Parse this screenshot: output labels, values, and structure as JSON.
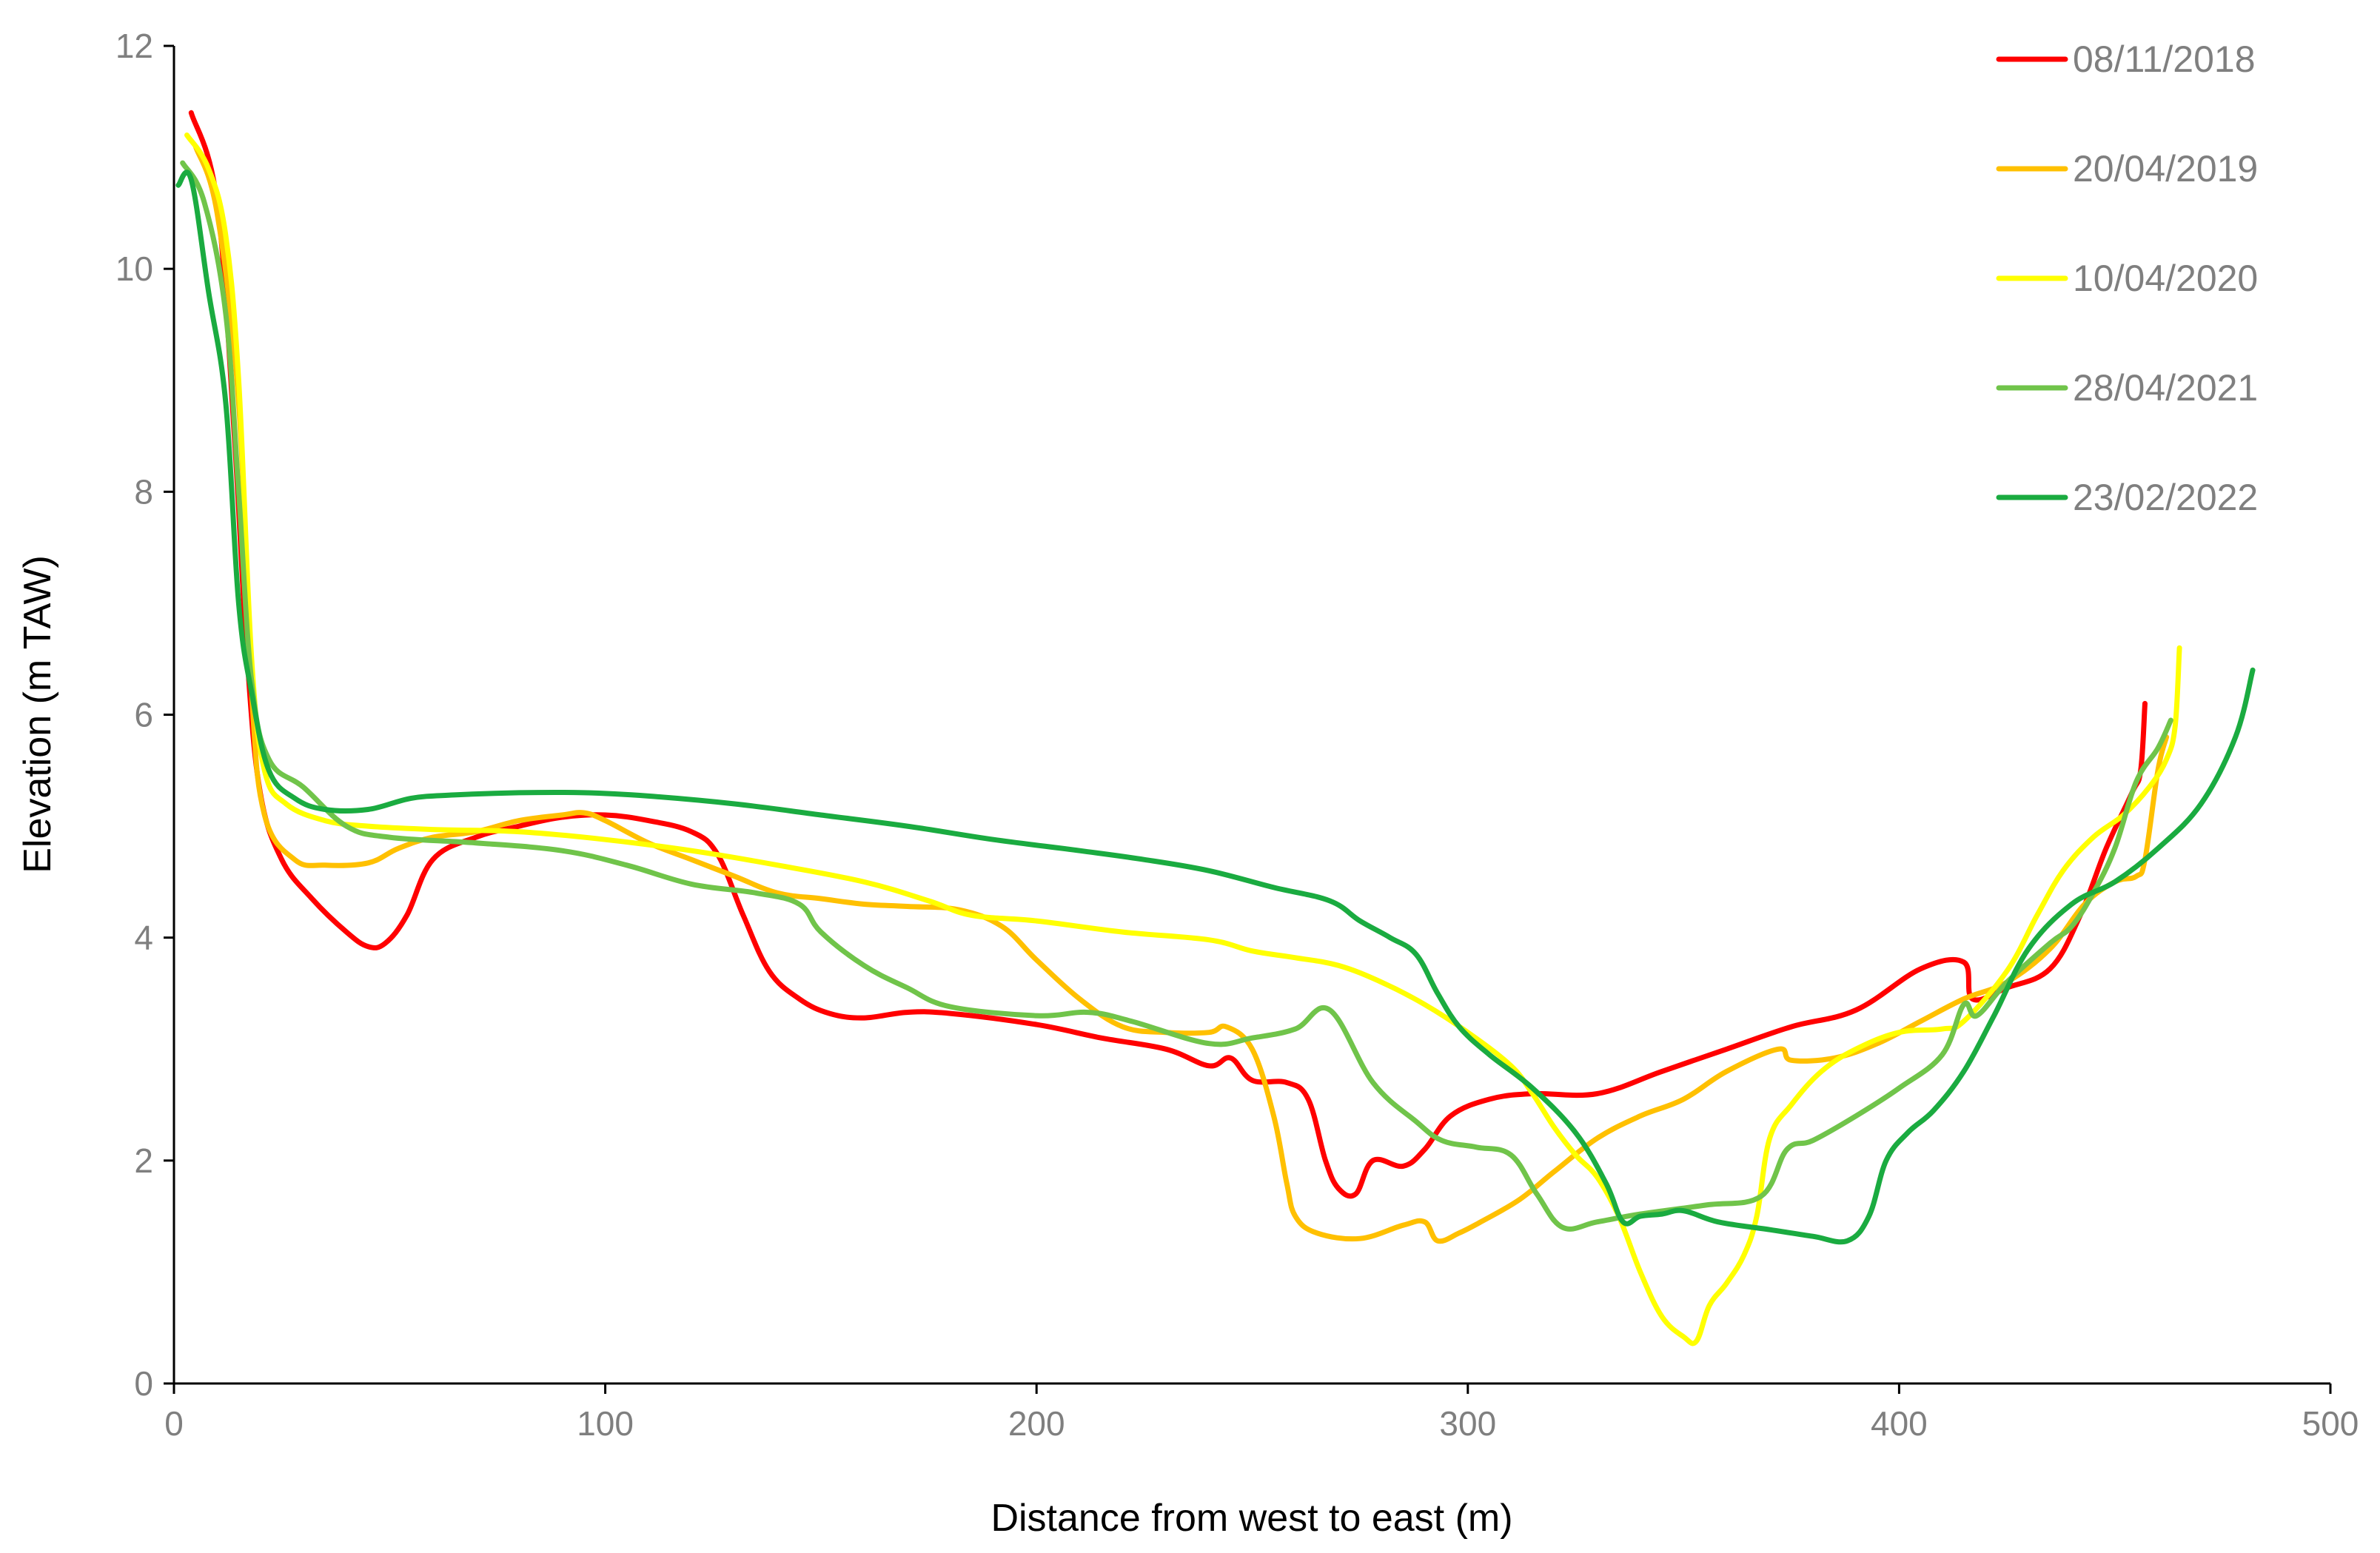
{
  "chart_data": {
    "type": "line",
    "title": "",
    "xlabel": "Distance from west to east (m)",
    "ylabel": "Elevation (m TAW)",
    "xlim": [
      0,
      500
    ],
    "ylim": [
      0,
      12
    ],
    "x_ticks": [
      0,
      100,
      200,
      300,
      400,
      500
    ],
    "y_ticks": [
      0,
      2,
      4,
      6,
      8,
      10,
      12
    ],
    "grid": false,
    "legend_position": "top-right",
    "series": [
      {
        "name": "08/11/2018",
        "color": "#ff0000",
        "points": [
          [
            4,
            11.4
          ],
          [
            10,
            10.6
          ],
          [
            14,
            8.5
          ],
          [
            17,
            6.5
          ],
          [
            20,
            5.3
          ],
          [
            25,
            4.7
          ],
          [
            32,
            4.35
          ],
          [
            40,
            4.05
          ],
          [
            45,
            3.92
          ],
          [
            49,
            3.95
          ],
          [
            54,
            4.2
          ],
          [
            60,
            4.7
          ],
          [
            70,
            4.9
          ],
          [
            80,
            5.0
          ],
          [
            90,
            5.08
          ],
          [
            100,
            5.1
          ],
          [
            110,
            5.05
          ],
          [
            120,
            4.95
          ],
          [
            126,
            4.75
          ],
          [
            132,
            4.2
          ],
          [
            138,
            3.7
          ],
          [
            145,
            3.45
          ],
          [
            152,
            3.32
          ],
          [
            160,
            3.28
          ],
          [
            170,
            3.33
          ],
          [
            180,
            3.32
          ],
          [
            200,
            3.22
          ],
          [
            215,
            3.1
          ],
          [
            230,
            3.0
          ],
          [
            240,
            2.85
          ],
          [
            245,
            2.92
          ],
          [
            250,
            2.72
          ],
          [
            258,
            2.7
          ],
          [
            263,
            2.55
          ],
          [
            267,
            2.0
          ],
          [
            270,
            1.75
          ],
          [
            274,
            1.7
          ],
          [
            278,
            2.0
          ],
          [
            285,
            1.95
          ],
          [
            290,
            2.1
          ],
          [
            296,
            2.4
          ],
          [
            305,
            2.55
          ],
          [
            315,
            2.6
          ],
          [
            330,
            2.6
          ],
          [
            345,
            2.8
          ],
          [
            360,
            3.0
          ],
          [
            375,
            3.2
          ],
          [
            390,
            3.35
          ],
          [
            405,
            3.72
          ],
          [
            415,
            3.78
          ],
          [
            417,
            3.45
          ],
          [
            425,
            3.55
          ],
          [
            435,
            3.72
          ],
          [
            442,
            4.2
          ],
          [
            448,
            4.8
          ],
          [
            454,
            5.3
          ],
          [
            456,
            5.5
          ],
          [
            457,
            6.1
          ]
        ]
      },
      {
        "name": "20/04/2019",
        "color": "#ffc000",
        "points": [
          [
            5,
            11.1
          ],
          [
            10,
            10.5
          ],
          [
            15,
            8.8
          ],
          [
            18,
            6.2
          ],
          [
            21,
            5.1
          ],
          [
            28,
            4.7
          ],
          [
            35,
            4.65
          ],
          [
            45,
            4.67
          ],
          [
            52,
            4.8
          ],
          [
            60,
            4.9
          ],
          [
            70,
            4.95
          ],
          [
            80,
            5.05
          ],
          [
            90,
            5.1
          ],
          [
            95,
            5.12
          ],
          [
            100,
            5.05
          ],
          [
            110,
            4.85
          ],
          [
            120,
            4.7
          ],
          [
            130,
            4.55
          ],
          [
            140,
            4.4
          ],
          [
            150,
            4.35
          ],
          [
            160,
            4.3
          ],
          [
            170,
            4.28
          ],
          [
            182,
            4.25
          ],
          [
            192,
            4.1
          ],
          [
            200,
            3.8
          ],
          [
            210,
            3.45
          ],
          [
            220,
            3.2
          ],
          [
            230,
            3.15
          ],
          [
            240,
            3.15
          ],
          [
            244,
            3.2
          ],
          [
            250,
            3.0
          ],
          [
            255,
            2.4
          ],
          [
            258,
            1.8
          ],
          [
            260,
            1.5
          ],
          [
            265,
            1.35
          ],
          [
            275,
            1.3
          ],
          [
            285,
            1.42
          ],
          [
            290,
            1.45
          ],
          [
            293,
            1.28
          ],
          [
            298,
            1.35
          ],
          [
            303,
            1.45
          ],
          [
            312,
            1.65
          ],
          [
            320,
            1.9
          ],
          [
            330,
            2.2
          ],
          [
            340,
            2.4
          ],
          [
            350,
            2.55
          ],
          [
            360,
            2.8
          ],
          [
            372,
            3.0
          ],
          [
            375,
            2.9
          ],
          [
            385,
            2.92
          ],
          [
            395,
            3.05
          ],
          [
            405,
            3.25
          ],
          [
            415,
            3.45
          ],
          [
            425,
            3.6
          ],
          [
            435,
            3.9
          ],
          [
            443,
            4.3
          ],
          [
            450,
            4.5
          ],
          [
            455,
            4.55
          ],
          [
            457,
            4.7
          ],
          [
            460,
            5.5
          ],
          [
            462,
            5.8
          ]
        ]
      },
      {
        "name": "10/04/2020",
        "color": "#ffff00",
        "points": [
          [
            3,
            11.2
          ],
          [
            8,
            10.9
          ],
          [
            12,
            10.3
          ],
          [
            15,
            9.0
          ],
          [
            18,
            6.5
          ],
          [
            21,
            5.5
          ],
          [
            26,
            5.2
          ],
          [
            35,
            5.05
          ],
          [
            45,
            5.0
          ],
          [
            60,
            4.97
          ],
          [
            80,
            4.95
          ],
          [
            100,
            4.88
          ],
          [
            120,
            4.78
          ],
          [
            140,
            4.65
          ],
          [
            160,
            4.5
          ],
          [
            175,
            4.33
          ],
          [
            185,
            4.2
          ],
          [
            200,
            4.15
          ],
          [
            220,
            4.05
          ],
          [
            240,
            3.98
          ],
          [
            250,
            3.88
          ],
          [
            260,
            3.82
          ],
          [
            270,
            3.75
          ],
          [
            280,
            3.6
          ],
          [
            290,
            3.4
          ],
          [
            300,
            3.15
          ],
          [
            310,
            2.85
          ],
          [
            315,
            2.6
          ],
          [
            320,
            2.3
          ],
          [
            325,
            2.05
          ],
          [
            330,
            1.85
          ],
          [
            335,
            1.5
          ],
          [
            340,
            1.0
          ],
          [
            345,
            0.6
          ],
          [
            350,
            0.42
          ],
          [
            353,
            0.38
          ],
          [
            356,
            0.7
          ],
          [
            360,
            0.9
          ],
          [
            364,
            1.15
          ],
          [
            367,
            1.5
          ],
          [
            370,
            2.2
          ],
          [
            375,
            2.5
          ],
          [
            382,
            2.8
          ],
          [
            390,
            3.0
          ],
          [
            400,
            3.15
          ],
          [
            410,
            3.18
          ],
          [
            415,
            3.25
          ],
          [
            425,
            3.7
          ],
          [
            432,
            4.2
          ],
          [
            438,
            4.6
          ],
          [
            445,
            4.9
          ],
          [
            452,
            5.1
          ],
          [
            458,
            5.35
          ],
          [
            462,
            5.6
          ],
          [
            464,
            5.9
          ],
          [
            465,
            6.6
          ]
        ]
      },
      {
        "name": "28/04/2021",
        "color": "#70c44a",
        "points": [
          [
            2,
            10.95
          ],
          [
            7,
            10.6
          ],
          [
            12,
            9.6
          ],
          [
            15,
            8.0
          ],
          [
            18,
            6.3
          ],
          [
            22,
            5.6
          ],
          [
            30,
            5.35
          ],
          [
            40,
            5.0
          ],
          [
            50,
            4.9
          ],
          [
            70,
            4.85
          ],
          [
            90,
            4.78
          ],
          [
            105,
            4.65
          ],
          [
            120,
            4.48
          ],
          [
            135,
            4.4
          ],
          [
            145,
            4.3
          ],
          [
            150,
            4.05
          ],
          [
            160,
            3.75
          ],
          [
            170,
            3.55
          ],
          [
            180,
            3.38
          ],
          [
            200,
            3.3
          ],
          [
            212,
            3.33
          ],
          [
            222,
            3.25
          ],
          [
            240,
            3.05
          ],
          [
            250,
            3.1
          ],
          [
            260,
            3.18
          ],
          [
            268,
            3.35
          ],
          [
            278,
            2.7
          ],
          [
            288,
            2.35
          ],
          [
            294,
            2.18
          ],
          [
            302,
            2.12
          ],
          [
            310,
            2.05
          ],
          [
            316,
            1.7
          ],
          [
            322,
            1.4
          ],
          [
            330,
            1.45
          ],
          [
            340,
            1.52
          ],
          [
            355,
            1.6
          ],
          [
            368,
            1.68
          ],
          [
            374,
            2.1
          ],
          [
            380,
            2.18
          ],
          [
            390,
            2.4
          ],
          [
            400,
            2.65
          ],
          [
            410,
            2.95
          ],
          [
            415,
            3.4
          ],
          [
            418,
            3.3
          ],
          [
            425,
            3.6
          ],
          [
            435,
            3.95
          ],
          [
            440,
            4.1
          ],
          [
            445,
            4.4
          ],
          [
            450,
            4.8
          ],
          [
            455,
            5.4
          ],
          [
            460,
            5.7
          ],
          [
            463,
            5.95
          ]
        ]
      },
      {
        "name": "23/02/2022",
        "color": "#1aab40",
        "points": [
          [
            1,
            10.75
          ],
          [
            4,
            10.8
          ],
          [
            8,
            9.8
          ],
          [
            12,
            8.8
          ],
          [
            15,
            7.0
          ],
          [
            18,
            6.2
          ],
          [
            22,
            5.5
          ],
          [
            28,
            5.25
          ],
          [
            35,
            5.15
          ],
          [
            45,
            5.15
          ],
          [
            55,
            5.25
          ],
          [
            65,
            5.28
          ],
          [
            80,
            5.3
          ],
          [
            95,
            5.3
          ],
          [
            110,
            5.27
          ],
          [
            130,
            5.2
          ],
          [
            150,
            5.1
          ],
          [
            170,
            5.0
          ],
          [
            190,
            4.88
          ],
          [
            210,
            4.78
          ],
          [
            225,
            4.7
          ],
          [
            240,
            4.6
          ],
          [
            255,
            4.45
          ],
          [
            268,
            4.33
          ],
          [
            275,
            4.15
          ],
          [
            282,
            4.0
          ],
          [
            288,
            3.85
          ],
          [
            293,
            3.5
          ],
          [
            298,
            3.2
          ],
          [
            305,
            2.95
          ],
          [
            315,
            2.65
          ],
          [
            325,
            2.25
          ],
          [
            332,
            1.8
          ],
          [
            336,
            1.45
          ],
          [
            340,
            1.5
          ],
          [
            345,
            1.52
          ],
          [
            350,
            1.55
          ],
          [
            358,
            1.45
          ],
          [
            370,
            1.38
          ],
          [
            380,
            1.32
          ],
          [
            388,
            1.28
          ],
          [
            393,
            1.5
          ],
          [
            397,
            2.0
          ],
          [
            402,
            2.25
          ],
          [
            408,
            2.45
          ],
          [
            415,
            2.8
          ],
          [
            422,
            3.3
          ],
          [
            430,
            3.9
          ],
          [
            440,
            4.3
          ],
          [
            450,
            4.5
          ],
          [
            460,
            4.8
          ],
          [
            470,
            5.2
          ],
          [
            478,
            5.8
          ],
          [
            482,
            6.4
          ]
        ]
      }
    ]
  }
}
